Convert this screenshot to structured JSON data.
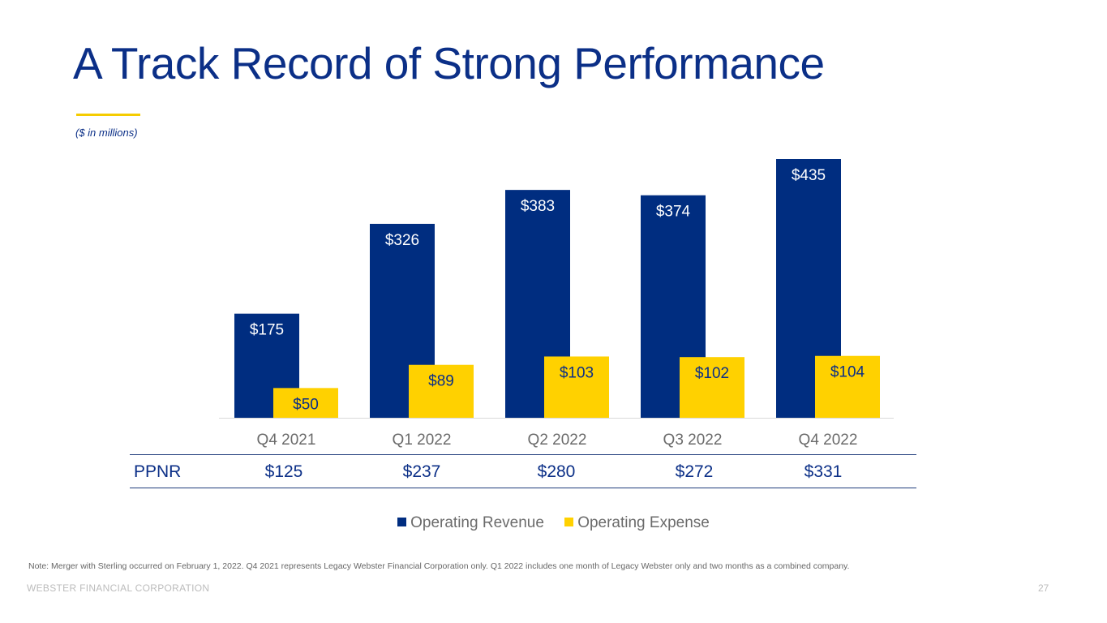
{
  "slide": {
    "title": "A Track Record of Strong Performance",
    "subtitle": "($ in millions)",
    "note": "Note: Merger with Sterling occurred on February 1, 2022.  Q4 2021 represents Legacy Webster Financial Corporation only.  Q1 2022 includes one month of Legacy Webster only and two months as a combined company.",
    "footer": "WEBSTER FINANCIAL CORPORATION",
    "page_number": "27"
  },
  "chart_data": {
    "type": "bar",
    "title": "A Track Record of Strong Performance",
    "subtitle": "($ in millions)",
    "categories": [
      "Q4 2021",
      "Q1 2022",
      "Q2 2022",
      "Q3 2022",
      "Q4 2022"
    ],
    "series": [
      {
        "name": "Operating Revenue",
        "values": [
          175,
          326,
          383,
          374,
          435
        ],
        "labels": [
          "$175",
          "$326",
          "$383",
          "$374",
          "$435"
        ],
        "color": "#002d80",
        "label_color": "#ffffff"
      },
      {
        "name": "Operating Expense",
        "values": [
          50,
          89,
          103,
          102,
          104
        ],
        "labels": [
          "$50",
          "$89",
          "$103",
          "$102",
          "$104"
        ],
        "color": "#ffd100",
        "label_color": "#0b2f87"
      }
    ],
    "ylim": [
      0,
      435
    ],
    "xlabel": "",
    "ylabel": "",
    "grid": false,
    "legend": "bottom-center"
  },
  "ppnr": {
    "label": "PPNR",
    "values": [
      "$125",
      "$237",
      "$280",
      "$272",
      "$331"
    ]
  },
  "legend": [
    {
      "label": "Operating Revenue",
      "color": "#002d80"
    },
    {
      "label": "Operating Expense",
      "color": "#ffd100"
    }
  ]
}
